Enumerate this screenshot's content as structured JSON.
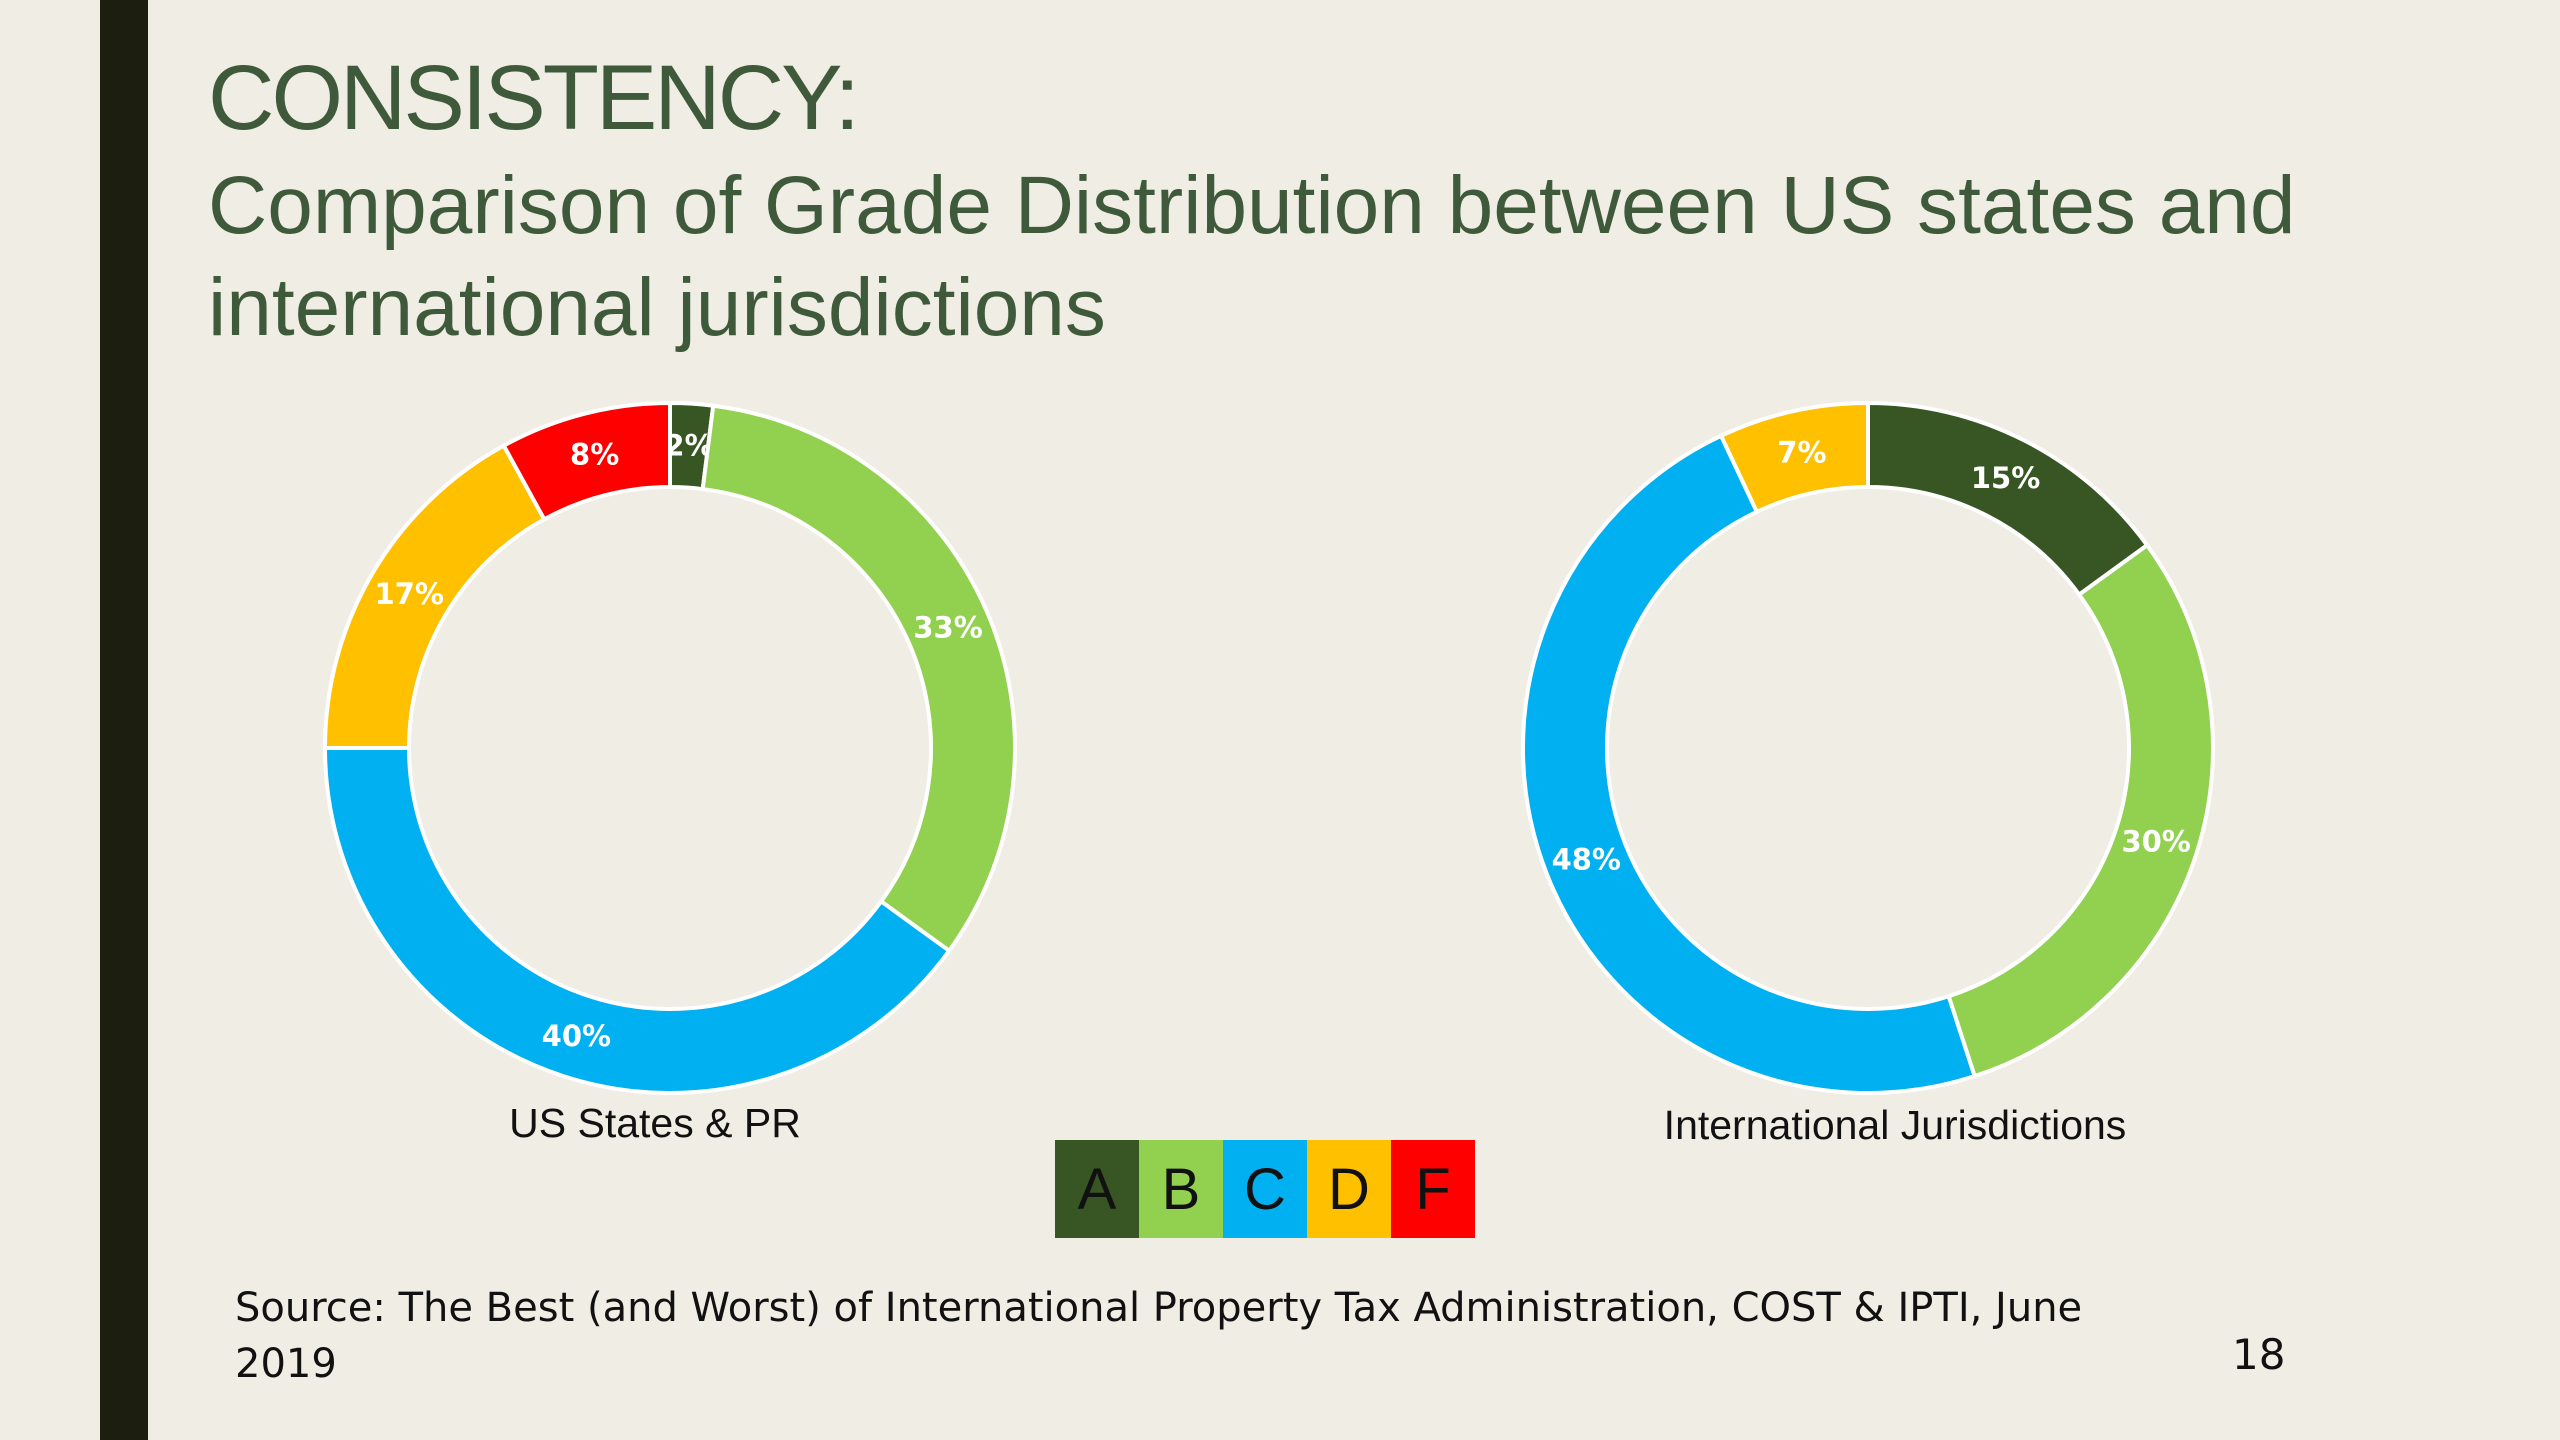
{
  "title": {
    "main": "CONSISTENCY:",
    "sub": "Comparison of Grade Distribution between US states and international jurisdictions"
  },
  "legend": {
    "items": [
      {
        "label": "A",
        "color": "#375623"
      },
      {
        "label": "B",
        "color": "#92d050"
      },
      {
        "label": "C",
        "color": "#00b0f0"
      },
      {
        "label": "D",
        "color": "#ffc000"
      },
      {
        "label": "F",
        "color": "#ff0000"
      }
    ]
  },
  "source": "Source: The Best (and Worst) of International Property Tax Administration, COST & IPTI, June 2019",
  "page_number": "18",
  "chart_data": [
    {
      "type": "pie",
      "variant": "donut",
      "title": "US States & PR",
      "categories": [
        "A",
        "B",
        "C",
        "D",
        "F"
      ],
      "values": [
        2,
        33,
        40,
        17,
        8
      ],
      "labels": [
        "2%",
        "33%",
        "40%",
        "17%",
        "8%"
      ],
      "colors": [
        "#375623",
        "#92d050",
        "#00b0f0",
        "#ffc000",
        "#ff0000"
      ]
    },
    {
      "type": "pie",
      "variant": "donut",
      "title": "International Jurisdictions",
      "categories": [
        "A",
        "B",
        "C",
        "D"
      ],
      "values": [
        15,
        30,
        48,
        7
      ],
      "labels": [
        "15%",
        "30%",
        "48%",
        "7%"
      ],
      "colors": [
        "#375623",
        "#92d050",
        "#00b0f0",
        "#ffc000"
      ]
    }
  ]
}
